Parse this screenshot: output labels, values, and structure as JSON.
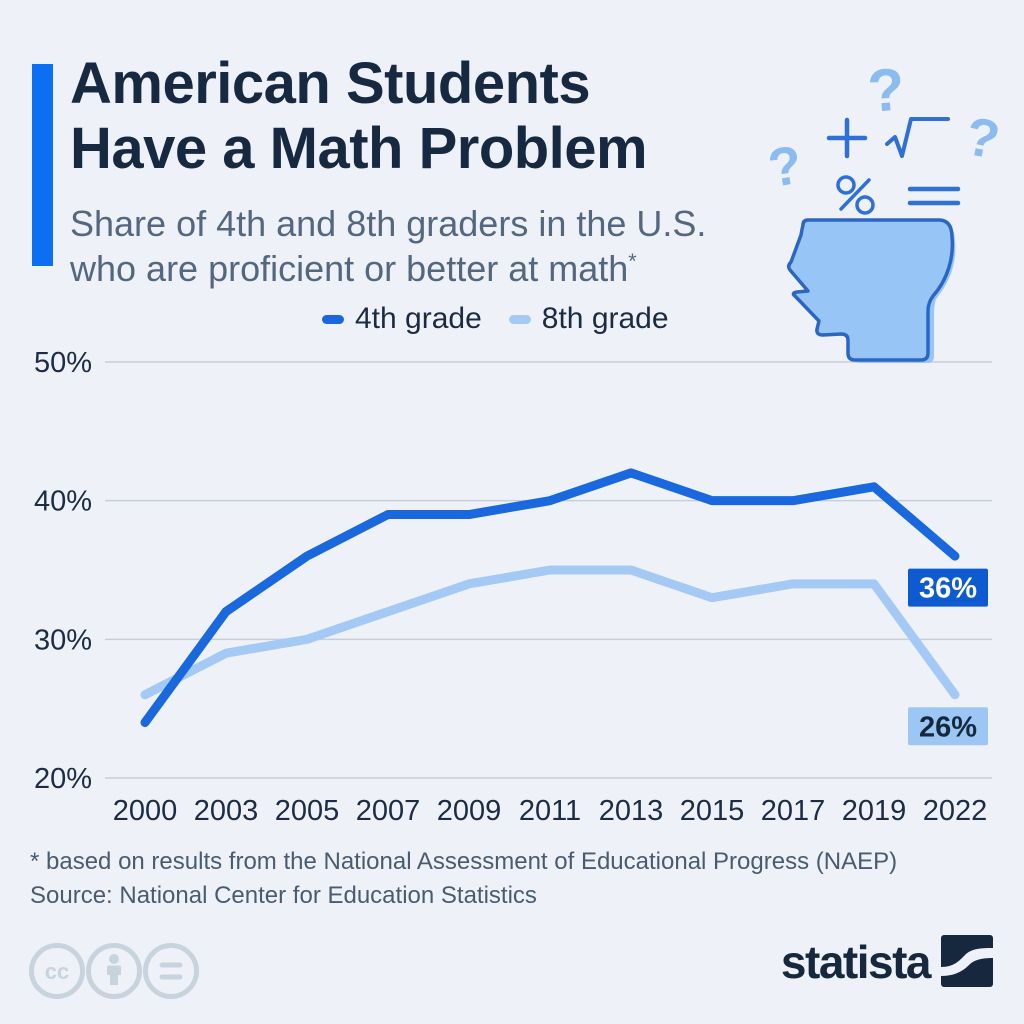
{
  "page": {
    "background": "#eef2f8",
    "accent_color": "#0c6ef2"
  },
  "header": {
    "title_line1": "American Students",
    "title_line2": "Have a Math Problem",
    "subtitle_line1": "Share of 4th and 8th graders in the U.S.",
    "subtitle_line2": "who are proficient or better at math",
    "footnote_marker": "*"
  },
  "legend": {
    "items": [
      {
        "label": "4th grade",
        "color": "#1a68dd"
      },
      {
        "label": "8th grade",
        "color": "#a3c9f4"
      }
    ]
  },
  "chart_data": {
    "type": "line",
    "title": "Share of 4th and 8th graders in the U.S. who are proficient or better at math",
    "categories": [
      "2000",
      "2003",
      "2005",
      "2007",
      "2009",
      "2011",
      "2013",
      "2015",
      "2017",
      "2019",
      "2022"
    ],
    "series": [
      {
        "name": "4th grade",
        "color": "#1a68dd",
        "values": [
          24,
          32,
          36,
          39,
          39,
          40,
          42,
          40,
          40,
          41,
          36
        ],
        "end_label": {
          "text": "36%",
          "bg": "#0e5bd1",
          "fg": "#ffffff"
        }
      },
      {
        "name": "8th grade",
        "color": "#a3c9f4",
        "values": [
          26,
          29,
          30,
          32,
          34,
          35,
          35,
          33,
          34,
          34,
          26
        ],
        "end_label": {
          "text": "26%",
          "bg": "#9cc6f3",
          "fg": "#16283e"
        }
      }
    ],
    "xlabel": "",
    "ylabel": "",
    "ylim": [
      20,
      50
    ],
    "yticks": [
      {
        "value": 50,
        "label": "50%"
      },
      {
        "value": 40,
        "label": "40%"
      },
      {
        "value": 30,
        "label": "30%"
      },
      {
        "value": 20,
        "label": "20%"
      }
    ],
    "grid": true,
    "gridline_color": "#c8cdd7",
    "tick_color": "#1c2c44",
    "legend_position": "top"
  },
  "footer": {
    "footnote": "* based on results from the National Assessment of Educational Progress (NAEP)",
    "source": "Source: National Center for Education Statistics",
    "license_icons": [
      "cc-icon",
      "attribution-icon",
      "equals-icon"
    ],
    "brand": {
      "name": "statista",
      "color": "#16283e"
    }
  }
}
